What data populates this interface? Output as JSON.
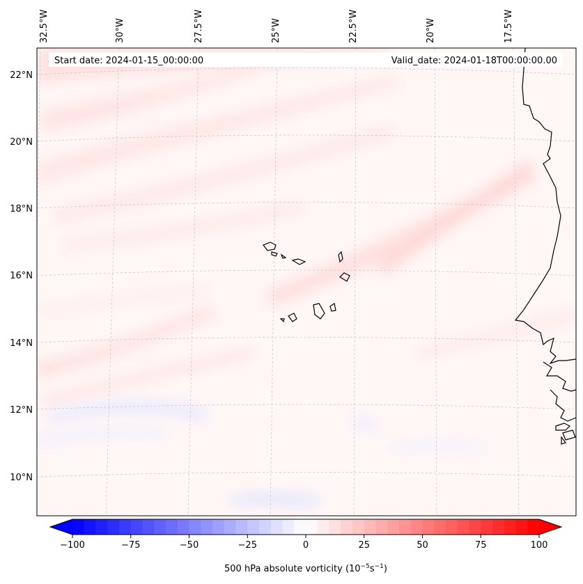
{
  "map": {
    "title_left": "Start date: 2024-01-15_00:00:00",
    "title_right": "Valid_date: 2024-01-18T00:00:00.00",
    "longitude_labels": [
      "32.5°W",
      "30°W",
      "27.5°W",
      "25°W",
      "22.5°W",
      "20°W",
      "17.5°W"
    ],
    "latitude_labels": [
      "22°N",
      "20°N",
      "18°N",
      "16°N",
      "14°N",
      "12°N",
      "10°N"
    ],
    "field": "500 hPa absolute vorticity"
  },
  "colorbar": {
    "ticks": [
      "−100",
      "−75",
      "−50",
      "−25",
      "0",
      "25",
      "50",
      "75",
      "100"
    ],
    "tick_values": [
      -100,
      -75,
      -50,
      -25,
      0,
      25,
      50,
      75,
      100
    ],
    "range": [
      -100,
      100
    ],
    "label_prefix": "500 hPa absolute vorticity (10",
    "label_exp1": "−5",
    "label_mid": "s",
    "label_exp2": "−1",
    "label_suffix": ")",
    "colors": {
      "negative": "#0000ff",
      "zero": "#ffffff",
      "positive": "#ff0000"
    }
  }
}
